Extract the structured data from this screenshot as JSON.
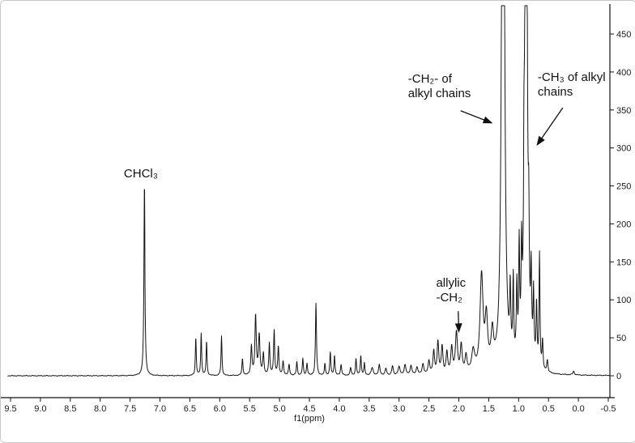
{
  "chart_data": {
    "type": "line",
    "description": "1H NMR spectrum trace",
    "title": "",
    "xlabel": "f1(ppm)",
    "ylabel": "",
    "x_axis_reversed": true,
    "x_range": [
      9.55,
      -0.55
    ],
    "x_ticks": [
      9.5,
      9.0,
      8.5,
      8.0,
      7.5,
      7.0,
      6.5,
      6.0,
      5.5,
      5.0,
      4.5,
      4.0,
      3.5,
      3.0,
      2.5,
      2.0,
      1.5,
      1.0,
      0.5,
      0.0,
      -0.5
    ],
    "x_tick_labels": [
      "9.5",
      "9.0",
      "8.5",
      "8.0",
      "7.5",
      "7.0",
      "6.5",
      "6.0",
      "5.5",
      "5.0",
      "4.5",
      "4.0",
      "3.5",
      "3.0",
      "2.5",
      "2.0",
      "1.5",
      "1.0",
      "0.5",
      "0.0",
      "-0.5"
    ],
    "y_ticks": [
      0,
      50,
      100,
      150,
      200,
      250,
      300,
      350,
      400,
      450
    ],
    "y_tick_labels": [
      "0",
      "50",
      "100",
      "150",
      "200",
      "250",
      "300",
      "350",
      "400",
      "450"
    ],
    "ylim": [
      -10,
      485
    ],
    "grid": false,
    "legend": "none",
    "line_color": "#141414",
    "axis_color": "#111111",
    "background": "#ffffff",
    "peaks_format": [
      "ppm",
      "intensity",
      "half_width_ppm"
    ],
    "peaks": [
      [
        7.26,
        255,
        0.01
      ],
      [
        6.4,
        50,
        0.009
      ],
      [
        6.31,
        55,
        0.009
      ],
      [
        6.22,
        45,
        0.009
      ],
      [
        5.97,
        52,
        0.009
      ],
      [
        5.62,
        22,
        0.01
      ],
      [
        5.47,
        38,
        0.012
      ],
      [
        5.4,
        78,
        0.013
      ],
      [
        5.34,
        52,
        0.015
      ],
      [
        5.27,
        28,
        0.012
      ],
      [
        5.17,
        42,
        0.011
      ],
      [
        5.09,
        58,
        0.011
      ],
      [
        5.02,
        38,
        0.011
      ],
      [
        4.94,
        18,
        0.012
      ],
      [
        4.84,
        14,
        0.012
      ],
      [
        4.71,
        18,
        0.01
      ],
      [
        4.61,
        22,
        0.01
      ],
      [
        4.54,
        16,
        0.01
      ],
      [
        4.39,
        95,
        0.01
      ],
      [
        4.24,
        16,
        0.01
      ],
      [
        4.15,
        30,
        0.01
      ],
      [
        4.08,
        26,
        0.01
      ],
      [
        3.97,
        14,
        0.012
      ],
      [
        3.81,
        10,
        0.012
      ],
      [
        3.72,
        22,
        0.01
      ],
      [
        3.64,
        26,
        0.01
      ],
      [
        3.58,
        16,
        0.01
      ],
      [
        3.45,
        10,
        0.02
      ],
      [
        3.33,
        14,
        0.015
      ],
      [
        3.22,
        9,
        0.015
      ],
      [
        3.11,
        12,
        0.015
      ],
      [
        3.0,
        11,
        0.02
      ],
      [
        2.9,
        13,
        0.018
      ],
      [
        2.8,
        12,
        0.018
      ],
      [
        2.7,
        10,
        0.018
      ],
      [
        2.6,
        14,
        0.018
      ],
      [
        2.5,
        18,
        0.018
      ],
      [
        2.42,
        30,
        0.016
      ],
      [
        2.35,
        42,
        0.016
      ],
      [
        2.28,
        36,
        0.016
      ],
      [
        2.2,
        28,
        0.016
      ],
      [
        2.12,
        34,
        0.018
      ],
      [
        2.04,
        54,
        0.02
      ],
      [
        1.96,
        36,
        0.018
      ],
      [
        1.88,
        22,
        0.02
      ],
      [
        1.76,
        28,
        0.03
      ],
      [
        1.62,
        125,
        0.03
      ],
      [
        1.54,
        65,
        0.025
      ],
      [
        1.44,
        45,
        0.025
      ],
      [
        1.26,
        1400,
        0.02
      ],
      [
        1.14,
        85,
        0.01
      ],
      [
        1.09,
        105,
        0.01
      ],
      [
        1.03,
        95,
        0.01
      ],
      [
        0.99,
        145,
        0.01
      ],
      [
        0.95,
        125,
        0.01
      ],
      [
        0.91,
        160,
        0.01
      ],
      [
        0.875,
        1300,
        0.015
      ],
      [
        0.83,
        130,
        0.01
      ],
      [
        0.79,
        105,
        0.01
      ],
      [
        0.75,
        90,
        0.01
      ],
      [
        0.7,
        80,
        0.01
      ],
      [
        0.65,
        150,
        0.009
      ],
      [
        0.6,
        38,
        0.01
      ],
      [
        0.52,
        16,
        0.012
      ],
      [
        0.08,
        5,
        0.015
      ]
    ],
    "annotations": [
      {
        "id": "chcl3",
        "text": "CHCl₃",
        "ppm": 7.32,
        "y": 275,
        "align": "center",
        "arrow": null
      },
      {
        "id": "ch2-alkyl",
        "text": "-CH₂- of\nalkyl chains",
        "ppm": 2.85,
        "y": 400,
        "align": "left",
        "arrow": {
          "from": [
            1.97,
            349
          ],
          "to": [
            1.45,
            333
          ]
        }
      },
      {
        "id": "ch3-alkyl",
        "text": "-CH₃ of alkyl\nchains",
        "ppm": 0.68,
        "y": 402,
        "align": "left",
        "arrow": {
          "from": [
            0.26,
            353
          ],
          "to": [
            0.69,
            304
          ]
        }
      },
      {
        "id": "allylic-ch2",
        "text": "allylic\n-CH₂",
        "ppm": 2.38,
        "y": 131,
        "align": "left",
        "arrow": {
          "from": [
            2.01,
            85
          ],
          "to": [
            2.0,
            58
          ]
        }
      }
    ]
  }
}
